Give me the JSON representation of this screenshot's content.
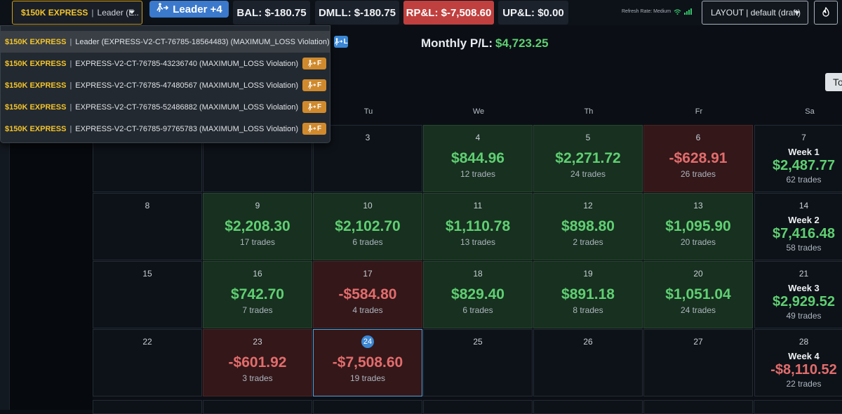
{
  "topbar": {
    "account_select": {
      "badge": "$150K EXPRESS",
      "sep": "|",
      "value": "Leader (E..."
    },
    "leader_button": {
      "label": "Leader +4"
    },
    "stats": [
      {
        "label": "BAL: $-180.75"
      },
      {
        "label": "DMLL: $-180.75"
      },
      {
        "label": "RP&L: $-7,508.60"
      },
      {
        "label": "UP&L: $0.00"
      }
    ],
    "refresh_rate": "Refresh Rate: Medium",
    "layout_select": "LAYOUT | default (draft)",
    "settings_icon": "flame-icon"
  },
  "dropdown": {
    "items": [
      {
        "badge": "$150K EXPRESS",
        "sep": "|",
        "text": "Leader (EXPRESS-V2-CT-76785-18564483) (MAXIMUM_LOSS Violation)",
        "tag": "L",
        "tag_color": "#3b87d4"
      },
      {
        "badge": "$150K EXPRESS",
        "sep": "|",
        "text": "EXPRESS-V2-CT-76785-43236740 (MAXIMUM_LOSS Violation)",
        "tag": "F",
        "tag_color": "#d08a2d"
      },
      {
        "badge": "$150K EXPRESS",
        "sep": "|",
        "text": "EXPRESS-V2-CT-76785-47480567 (MAXIMUM_LOSS Violation)",
        "tag": "F",
        "tag_color": "#d08a2d"
      },
      {
        "badge": "$150K EXPRESS",
        "sep": "|",
        "text": "EXPRESS-V2-CT-76785-52486882 (MAXIMUM_LOSS Violation)",
        "tag": "F",
        "tag_color": "#d08a2d"
      },
      {
        "badge": "$150K EXPRESS",
        "sep": "|",
        "text": "EXPRESS-V2-CT-76785-97765783 (MAXIMUM_LOSS Violation)",
        "tag": "F",
        "tag_color": "#d08a2d"
      }
    ]
  },
  "monthly": {
    "label": "Monthly P/L:",
    "value": "$4,723.25"
  },
  "today_button": "To",
  "weekdays": [
    "Tu",
    "We",
    "Th",
    "Fr",
    "Sa"
  ],
  "weeks": [
    {
      "days": [
        {
          "day": "",
          "type": "empty"
        },
        {
          "day": "",
          "type": "empty"
        },
        {
          "day": "3",
          "type": "empty"
        },
        {
          "day": "4",
          "type": "pos",
          "amount": "$844.96",
          "trades": "12 trades"
        },
        {
          "day": "5",
          "type": "pos",
          "amount": "$2,271.72",
          "trades": "24 trades"
        },
        {
          "day": "6",
          "type": "neg",
          "amount": "-$628.91",
          "trades": "26 trades"
        }
      ],
      "summary": {
        "day": "7",
        "week": "Week 1",
        "amount": "$2,487.77",
        "trades": "62 trades",
        "sign": "pos"
      }
    },
    {
      "days": [
        {
          "day": "8",
          "type": "empty"
        },
        {
          "day": "9",
          "type": "pos",
          "amount": "$2,208.30",
          "trades": "17 trades"
        },
        {
          "day": "10",
          "type": "pos",
          "amount": "$2,102.70",
          "trades": "6 trades"
        },
        {
          "day": "11",
          "type": "pos",
          "amount": "$1,110.78",
          "trades": "13 trades"
        },
        {
          "day": "12",
          "type": "pos",
          "amount": "$898.80",
          "trades": "2 trades"
        },
        {
          "day": "13",
          "type": "pos",
          "amount": "$1,095.90",
          "trades": "20 trades"
        }
      ],
      "summary": {
        "day": "14",
        "week": "Week 2",
        "amount": "$7,416.48",
        "trades": "58 trades",
        "sign": "pos"
      }
    },
    {
      "days": [
        {
          "day": "15",
          "type": "empty"
        },
        {
          "day": "16",
          "type": "pos",
          "amount": "$742.70",
          "trades": "7 trades"
        },
        {
          "day": "17",
          "type": "neg",
          "amount": "-$584.80",
          "trades": "4 trades"
        },
        {
          "day": "18",
          "type": "pos",
          "amount": "$829.40",
          "trades": "6 trades"
        },
        {
          "day": "19",
          "type": "pos",
          "amount": "$891.18",
          "trades": "8 trades"
        },
        {
          "day": "20",
          "type": "pos",
          "amount": "$1,051.04",
          "trades": "24 trades"
        }
      ],
      "summary": {
        "day": "21",
        "week": "Week 3",
        "amount": "$2,929.52",
        "trades": "49 trades",
        "sign": "pos"
      }
    },
    {
      "days": [
        {
          "day": "22",
          "type": "empty"
        },
        {
          "day": "23",
          "type": "neg",
          "amount": "-$601.92",
          "trades": "3 trades"
        },
        {
          "day": "24",
          "type": "neg",
          "amount": "-$7,508.60",
          "trades": "19 trades",
          "today": true
        },
        {
          "day": "25",
          "type": "empty"
        },
        {
          "day": "26",
          "type": "empty"
        },
        {
          "day": "27",
          "type": "empty"
        }
      ],
      "summary": {
        "day": "28",
        "week": "Week 4",
        "amount": "-$8,110.52",
        "trades": "22 trades",
        "sign": "neg"
      }
    }
  ]
}
